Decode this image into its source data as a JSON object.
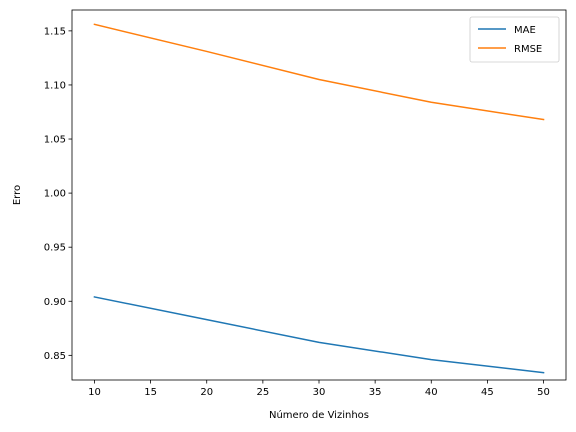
{
  "chart_data": {
    "type": "line",
    "title": "",
    "xlabel": "Número de Vizinhos",
    "ylabel": "Erro",
    "x": [
      10,
      20,
      30,
      40,
      50
    ],
    "xlim": [
      8,
      52
    ],
    "ylim": [
      0.8272,
      1.1693
    ],
    "xticks": [
      10,
      15,
      20,
      25,
      30,
      35,
      40,
      45,
      50
    ],
    "yticks": [
      0.85,
      0.9,
      0.95,
      1.0,
      1.05,
      1.1,
      1.15
    ],
    "grid": false,
    "legend_position": "top-right",
    "series": [
      {
        "name": "MAE",
        "color": "#1f77b4",
        "values": [
          0.904,
          0.883,
          0.862,
          0.846,
          0.834
        ]
      },
      {
        "name": "RMSE",
        "color": "#ff7f0e",
        "values": [
          1.156,
          1.131,
          1.105,
          1.084,
          1.068
        ]
      }
    ]
  }
}
